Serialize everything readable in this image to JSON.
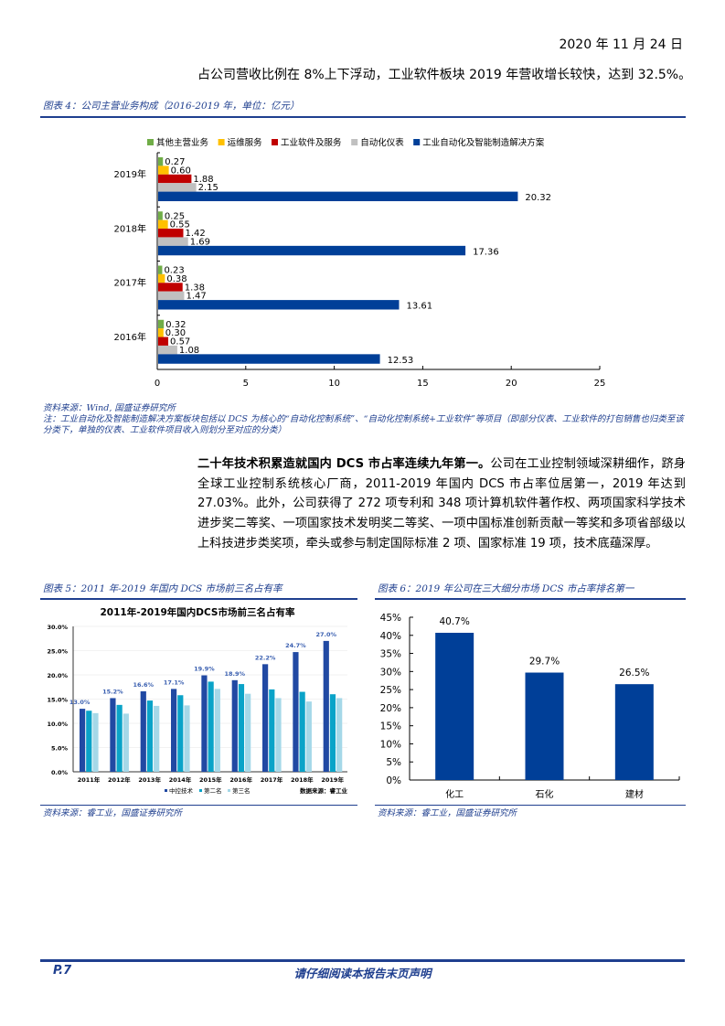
{
  "header": {
    "date": "2020 年 11 月 24 日"
  },
  "intro_text": "占公司营收比例在 8%上下浮动，工业软件板块 2019 年营收增长较快，达到 32.5%。",
  "figure4": {
    "title": "图表 4：公司主营业务构成（2016-2019 年，单位：亿元）",
    "source": "资料来源：Wind, 国盛证券研究所",
    "note": "注：工业自动化及智能制造解决方案板块包括以 DCS 为核心的“自动化控制系统”、“自动化控制系统+工业软件”等项目（即部分仪表、工业软件的打包销售也归类至该分类下，单独的仪表、工业软件项目收入则划分至对应的分类）"
  },
  "paragraph": {
    "lead": "二十年技术积累造就国内 DCS 市占率连续九年第一。",
    "body": "公司在工业控制领域深耕细作，跻身全球工业控制系统核心厂商，2011-2019 年国内 DCS 市占率位居第一，2019 年达到 27.03%。此外，公司获得了 272 项专利和 348 项计算机软件著作权、两项国家科学技术进步奖二等奖、一项国家技术发明奖二等奖、一项中国标准创新贡献一等奖和多项省部级以上科技进步类奖项，牵头或参与制定国际标准 2 项、国家标准 19 项，技术底蕴深厚。"
  },
  "figure5": {
    "title": "图表 5：2011 年-2019 年国内 DCS 市场前三名占有率",
    "source": "资料来源：睿工业，国盛证券研究所",
    "data_source_label": "数据来源：睿工业"
  },
  "figure6": {
    "title": "图表 6：2019 年公司在三大细分市场 DCS 市占率排名第一",
    "source": "资料来源：睿工业，国盛证券研究所"
  },
  "footer": {
    "page": "P.7",
    "disclaimer": "请仔细阅读本报告末页声明"
  },
  "colors": {
    "brand_blue": "#1f3f8f",
    "bar_blue": "#003f98",
    "bar_gray": "#c0c0c0",
    "bar_red": "#c00000",
    "bar_yellow": "#ffc000",
    "bar_green": "#70ad47",
    "fig5_dark": "#2149a3",
    "fig5_mid": "#0aa3c8",
    "fig5_light": "#a5d8e8"
  },
  "chart_data": [
    {
      "type": "bar",
      "orientation": "horizontal",
      "title": "公司主营业务构成（2016-2019 年，单位：亿元）",
      "categories": [
        "2019年",
        "2018年",
        "2017年",
        "2016年"
      ],
      "series": [
        {
          "name": "其他主营业务",
          "color": "#70ad47",
          "values": [
            0.27,
            0.25,
            0.23,
            0.32
          ]
        },
        {
          "name": "运维服务",
          "color": "#ffc000",
          "values": [
            0.6,
            0.55,
            0.38,
            0.3
          ]
        },
        {
          "name": "工业软件及服务",
          "color": "#c00000",
          "values": [
            1.88,
            1.42,
            1.38,
            0.57
          ]
        },
        {
          "name": "自动化仪表",
          "color": "#c0c0c0",
          "values": [
            2.15,
            1.69,
            1.47,
            1.08
          ]
        },
        {
          "name": "工业自动化及智能制造解决方案",
          "color": "#003f98",
          "values": [
            20.32,
            17.36,
            13.61,
            12.53
          ]
        }
      ],
      "xlim": [
        0,
        25
      ],
      "xticks": [
        0,
        5,
        10,
        15,
        20,
        25
      ],
      "legend_position": "top",
      "grid": false
    },
    {
      "type": "bar",
      "title": "2011年-2019年国内DCS市场前三名占有率",
      "categories": [
        "2011年",
        "2012年",
        "2013年",
        "2014年",
        "2015年",
        "2016年",
        "2017年",
        "2018年",
        "2019年"
      ],
      "series": [
        {
          "name": "中控技术",
          "color": "#2149a3",
          "values": [
            13.0,
            15.2,
            16.6,
            17.1,
            19.9,
            18.9,
            22.2,
            24.7,
            27.0
          ],
          "labels": [
            "13.0%",
            "15.2%",
            "16.6%",
            "17.1%",
            "19.9%",
            "18.9%",
            "22.2%",
            "24.7%",
            "27.0%"
          ]
        },
        {
          "name": "第二名",
          "color": "#0aa3c8",
          "values": [
            12.6,
            13.8,
            14.7,
            15.8,
            18.6,
            18.1,
            17.0,
            16.5,
            16.0
          ]
        },
        {
          "name": "第三名",
          "color": "#a5d8e8",
          "values": [
            12.1,
            12.0,
            13.6,
            13.7,
            17.1,
            16.1,
            15.2,
            14.5,
            15.2
          ]
        }
      ],
      "ylim": [
        0,
        30
      ],
      "yticks": [
        "0.0%",
        "5.0%",
        "10.0%",
        "15.0%",
        "20.0%",
        "25.0%",
        "30.0%"
      ],
      "legend_position": "bottom",
      "annotation": "数据来源：睿工业",
      "grid": false
    },
    {
      "type": "bar",
      "title": "2019 年公司在三大细分市场 DCS 市占率排名第一",
      "categories": [
        "化工",
        "石化",
        "建材"
      ],
      "values": [
        40.7,
        29.7,
        26.5
      ],
      "labels": [
        "40.7%",
        "29.7%",
        "26.5%"
      ],
      "color": "#003f98",
      "ylim": [
        0,
        45
      ],
      "yticks": [
        "0%",
        "5%",
        "10%",
        "15%",
        "20%",
        "25%",
        "30%",
        "35%",
        "40%",
        "45%"
      ],
      "grid": false
    }
  ]
}
